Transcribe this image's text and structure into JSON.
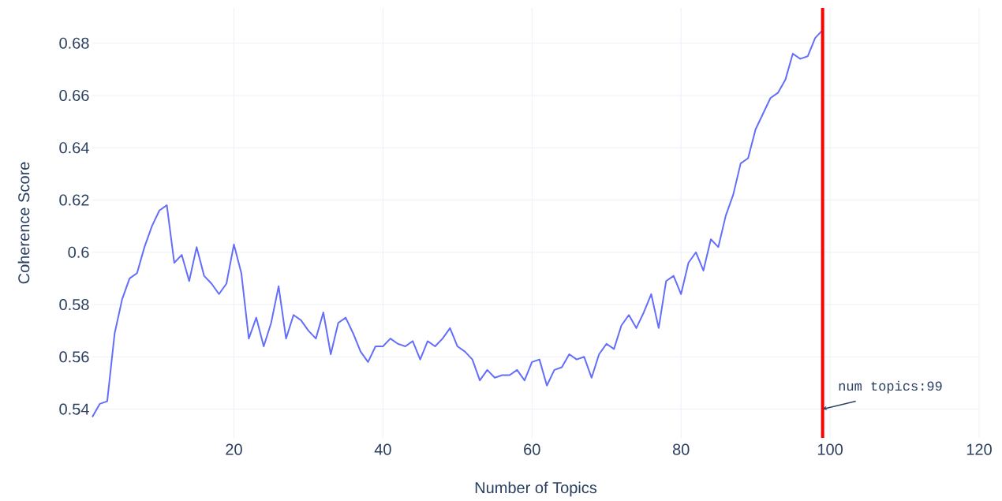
{
  "chart_data": {
    "type": "line",
    "xlabel": "Number of Topics",
    "ylabel": "Coherence Score",
    "x": [
      1,
      2,
      3,
      4,
      5,
      6,
      7,
      8,
      9,
      10,
      11,
      12,
      13,
      14,
      15,
      16,
      17,
      18,
      19,
      20,
      21,
      22,
      23,
      24,
      25,
      26,
      27,
      28,
      29,
      30,
      31,
      32,
      33,
      34,
      35,
      36,
      37,
      38,
      39,
      40,
      41,
      42,
      43,
      44,
      45,
      46,
      47,
      48,
      49,
      50,
      51,
      52,
      53,
      54,
      55,
      56,
      57,
      58,
      59,
      60,
      61,
      62,
      63,
      64,
      65,
      66,
      67,
      68,
      69,
      70,
      71,
      72,
      73,
      74,
      75,
      76,
      77,
      78,
      79,
      80,
      81,
      82,
      83,
      84,
      85,
      86,
      87,
      88,
      89,
      90,
      91,
      92,
      93,
      94,
      95,
      96,
      97,
      98,
      99
    ],
    "series": [
      {
        "color": "#636efa",
        "values": [
          0.537,
          0.542,
          0.543,
          0.569,
          0.582,
          0.59,
          0.592,
          0.602,
          0.61,
          0.616,
          0.618,
          0.596,
          0.599,
          0.589,
          0.602,
          0.591,
          0.588,
          0.584,
          0.588,
          0.603,
          0.592,
          0.567,
          0.575,
          0.564,
          0.573,
          0.587,
          0.567,
          0.576,
          0.574,
          0.57,
          0.567,
          0.577,
          0.561,
          0.573,
          0.575,
          0.569,
          0.562,
          0.558,
          0.564,
          0.564,
          0.567,
          0.565,
          0.564,
          0.566,
          0.559,
          0.566,
          0.564,
          0.567,
          0.571,
          0.564,
          0.562,
          0.559,
          0.551,
          0.555,
          0.552,
          0.553,
          0.553,
          0.555,
          0.551,
          0.558,
          0.559,
          0.549,
          0.555,
          0.556,
          0.561,
          0.559,
          0.56,
          0.552,
          0.561,
          0.565,
          0.563,
          0.572,
          0.576,
          0.571,
          0.577,
          0.584,
          0.571,
          0.589,
          0.591,
          0.584,
          0.596,
          0.6,
          0.593,
          0.605,
          0.602,
          0.614,
          0.622,
          0.634,
          0.636,
          0.647,
          0.653,
          0.659,
          0.661,
          0.666,
          0.676,
          0.674,
          0.675,
          0.682,
          0.685
        ]
      }
    ],
    "xlim": [
      1,
      120
    ],
    "xticks": [
      20,
      40,
      60,
      80,
      100,
      120
    ],
    "ylim": [
      0.529,
      0.6935
    ],
    "yticks": [
      0.54,
      0.56,
      0.58,
      0.6,
      0.62,
      0.64,
      0.66,
      0.68
    ],
    "grid": true,
    "ref_lines": [
      {
        "axis": "x",
        "value": 99,
        "color": "#ff0000"
      }
    ],
    "annotations": [
      {
        "text": "num topics:99",
        "x": 99,
        "y": 0.54
      }
    ]
  }
}
